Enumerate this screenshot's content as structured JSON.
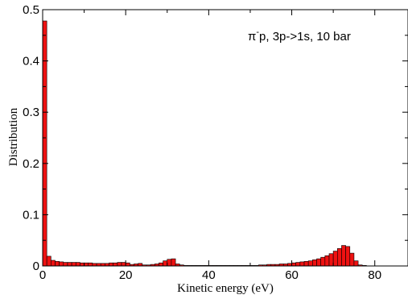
{
  "chart_data": {
    "type": "bar",
    "title": "",
    "annotation": {
      "particle": "π",
      "superscript": "-",
      "text": "p, 3p->1s, 10 bar"
    },
    "xlabel": "Kinetic energy (eV)",
    "ylabel": "Distribution",
    "xlim": [
      0,
      88
    ],
    "ylim": [
      0,
      0.5
    ],
    "xticks": [
      0,
      20,
      40,
      60,
      80
    ],
    "yticks": [
      0,
      0.1,
      0.2,
      0.3,
      0.4,
      0.5
    ],
    "xtick_labels": [
      "0",
      "20",
      "40",
      "60",
      "80"
    ],
    "ytick_labels": [
      "0",
      "0.1",
      "0.2",
      "0.3",
      "0.4",
      "0.5"
    ],
    "bin_width": 1,
    "bin_starts": [
      0,
      1,
      2,
      3,
      4,
      5,
      6,
      7,
      8,
      9,
      10,
      11,
      12,
      13,
      14,
      15,
      16,
      17,
      18,
      19,
      20,
      21,
      22,
      23,
      24,
      25,
      26,
      27,
      28,
      29,
      30,
      31,
      32,
      33,
      34,
      35,
      36,
      37,
      38,
      39,
      40,
      41,
      42,
      43,
      44,
      45,
      46,
      47,
      48,
      49,
      50,
      51,
      52,
      53,
      54,
      55,
      56,
      57,
      58,
      59,
      60,
      61,
      62,
      63,
      64,
      65,
      66,
      67,
      68,
      69,
      70,
      71,
      72,
      73,
      74,
      75,
      76,
      77
    ],
    "values": [
      0.478,
      0.019,
      0.011,
      0.009,
      0.008,
      0.007,
      0.007,
      0.007,
      0.007,
      0.006,
      0.006,
      0.006,
      0.005,
      0.005,
      0.005,
      0.005,
      0.006,
      0.006,
      0.007,
      0.007,
      0.006,
      0.003,
      0.004,
      0.005,
      0.002,
      0.002,
      0.003,
      0.004,
      0.006,
      0.01,
      0.013,
      0.014,
      0.004,
      0.002,
      0.001,
      0.001,
      0.001,
      0.001,
      0.001,
      0.001,
      0.001,
      0.001,
      0.001,
      0.001,
      0.001,
      0.001,
      0.001,
      0.001,
      0.001,
      0.001,
      0.001,
      0.001,
      0.002,
      0.002,
      0.003,
      0.003,
      0.003,
      0.004,
      0.004,
      0.005,
      0.006,
      0.007,
      0.008,
      0.009,
      0.01,
      0.012,
      0.014,
      0.017,
      0.02,
      0.024,
      0.029,
      0.034,
      0.04,
      0.038,
      0.025,
      0.01,
      0.002,
      0.001
    ],
    "bar_color": "#ee1111",
    "edge_color": "#000000",
    "grid": false,
    "legend": "none"
  }
}
